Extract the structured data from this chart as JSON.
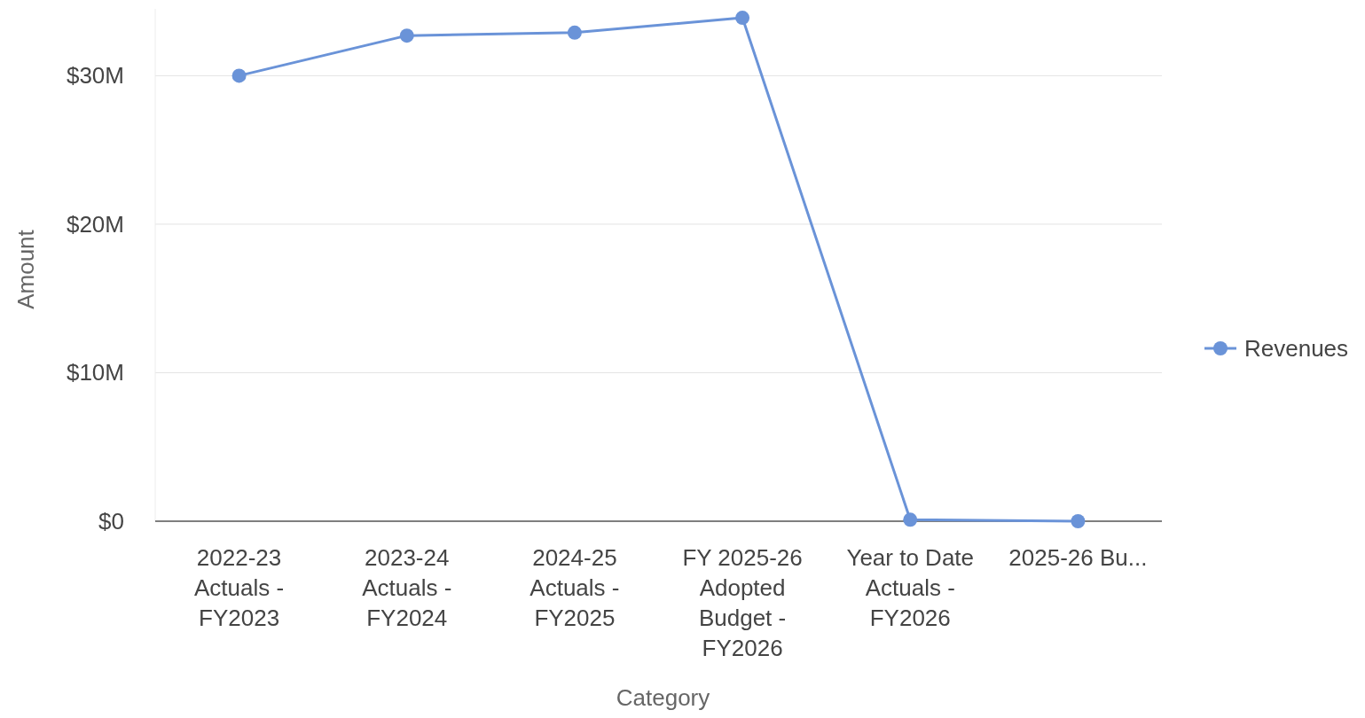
{
  "chart_data": {
    "type": "line",
    "xlabel": "Category",
    "ylabel": "Amount",
    "categories": [
      "2022-23 Actuals - FY2023",
      "2023-24 Actuals - FY2024",
      "2024-25 Actuals - FY2025",
      "FY 2025-26 Adopted Budget - FY2026",
      "Year to Date Actuals - FY2026",
      "2025-26 Bu..."
    ],
    "series": [
      {
        "name": "Revenues",
        "color": "#6a93d8",
        "values": [
          30.0,
          32.7,
          32.9,
          33.9,
          0.1,
          0
        ]
      }
    ],
    "yticks": [
      {
        "value": 0,
        "label": "$0"
      },
      {
        "value": 10,
        "label": "$10M"
      },
      {
        "value": 20,
        "label": "$20M"
      },
      {
        "value": 30,
        "label": "$30M"
      }
    ],
    "ylim": [
      0,
      34.5
    ],
    "grid": "y",
    "legend": "right",
    "marker": "circle",
    "line_style": "solid"
  }
}
